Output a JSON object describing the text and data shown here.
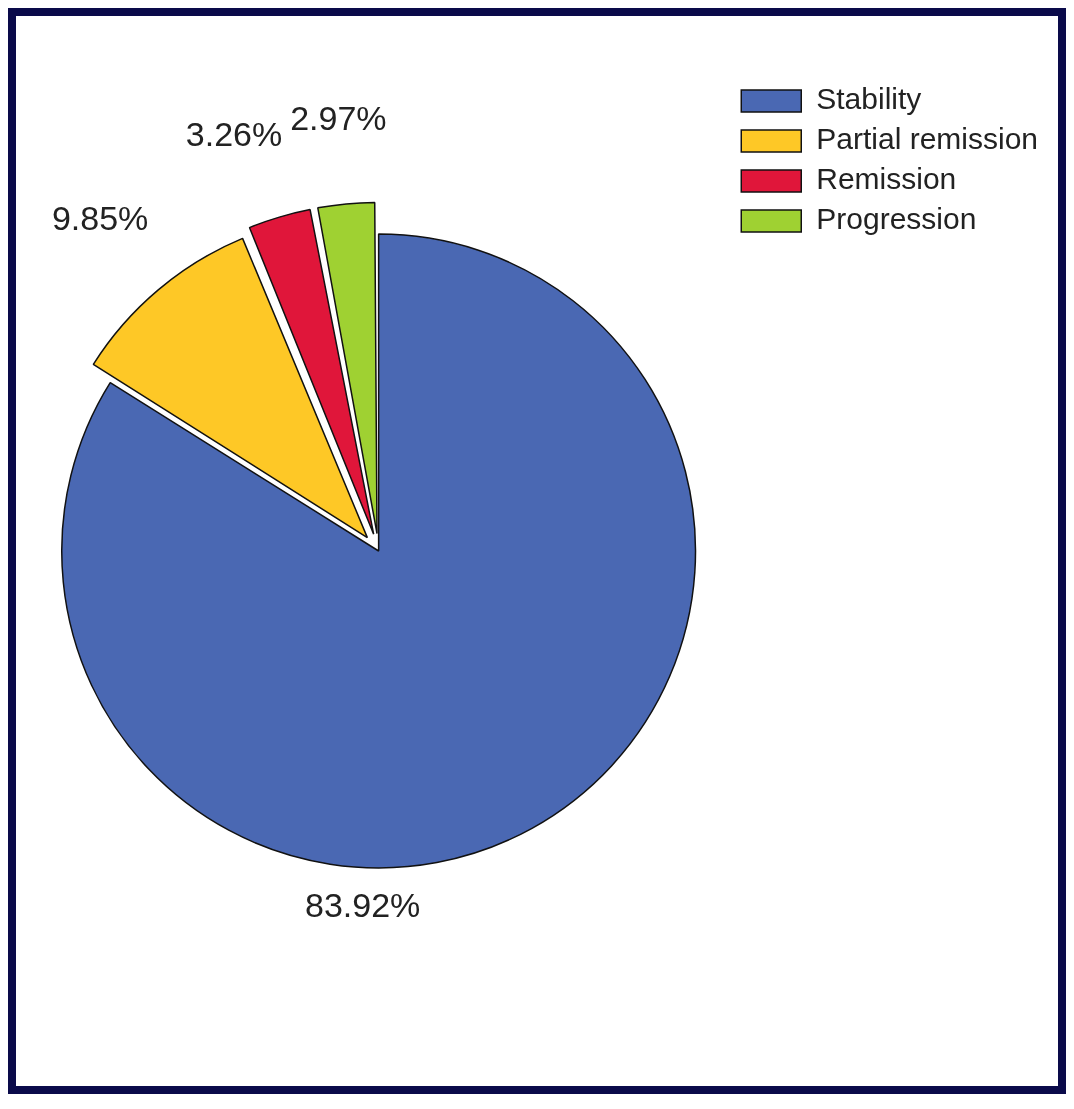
{
  "chart_data": {
    "type": "pie",
    "categories": [
      "Stability",
      "Partial remission",
      "Remission",
      "Progression"
    ],
    "values": [
      83.92,
      9.85,
      3.26,
      2.97
    ],
    "colors": [
      "#4a68b3",
      "#fec826",
      "#e0163a",
      "#9fd132"
    ],
    "value_labels": [
      "83.92%",
      "9.85%",
      "3.26%",
      "2.97%"
    ],
    "legend": "top right"
  }
}
